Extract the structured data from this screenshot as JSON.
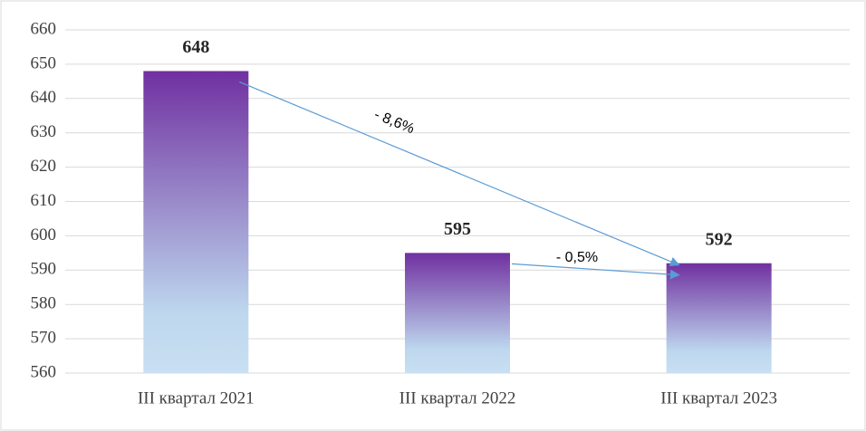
{
  "chart_data": {
    "type": "bar",
    "categories": [
      "III квартал 2021",
      "III квартал 2022",
      "III квартал 2023"
    ],
    "values": [
      648,
      595,
      592
    ],
    "color": [
      "#7030a0",
      "#bdd7ee"
    ],
    "ylim": [
      560,
      660
    ],
    "yticks": [
      560,
      570,
      580,
      590,
      600,
      610,
      620,
      630,
      640,
      650,
      660
    ],
    "grid": true,
    "annotations": [
      "- 8,6%",
      "- 0,5%"
    ]
  }
}
